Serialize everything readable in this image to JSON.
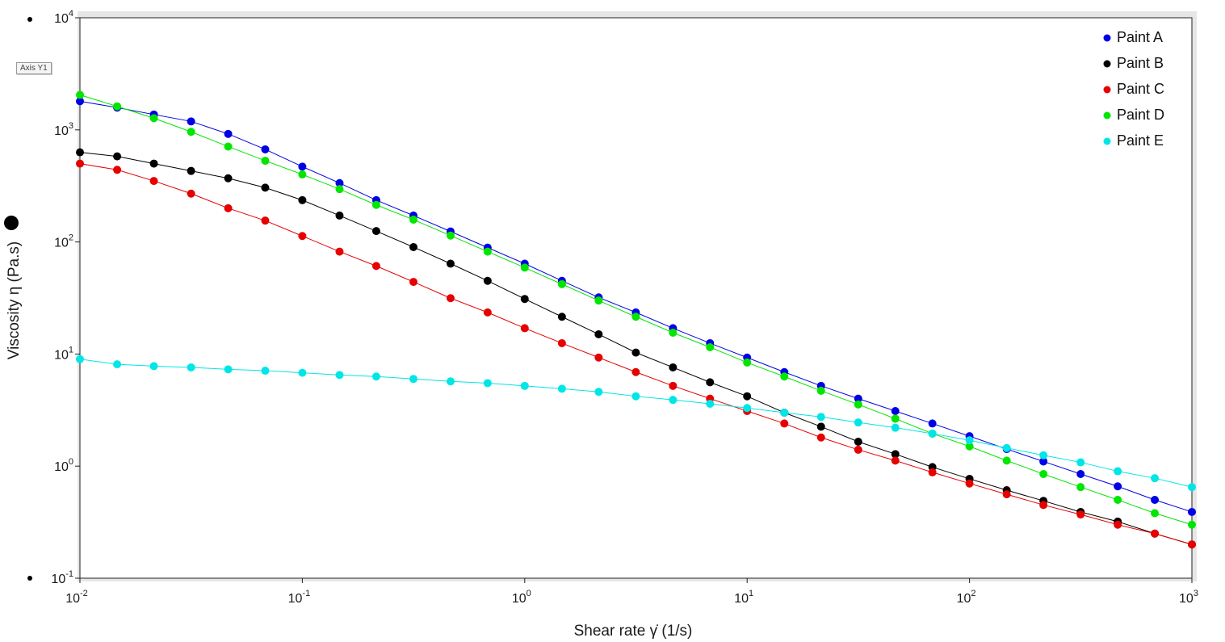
{
  "axis_tag": "Axis Y1",
  "chart_data": {
    "type": "line",
    "title": "",
    "xlabel": "Shear rate  γ̇  (1/s)",
    "ylabel": "Viscosity  η  (Pa.s)",
    "x_scale": "log",
    "y_scale": "log",
    "xlim": [
      0.01,
      1000
    ],
    "ylim": [
      0.1,
      10000
    ],
    "x_ticks": [
      {
        "base": "10",
        "exp": "-2",
        "value": 0.01
      },
      {
        "base": "10",
        "exp": "-1",
        "value": 0.1
      },
      {
        "base": "10",
        "exp": "0",
        "value": 1
      },
      {
        "base": "10",
        "exp": "1",
        "value": 10
      },
      {
        "base": "10",
        "exp": "2",
        "value": 100
      },
      {
        "base": "10",
        "exp": "3",
        "value": 1000
      }
    ],
    "y_ticks": [
      {
        "base": "10",
        "exp": "-1",
        "value": 0.1
      },
      {
        "base": "10",
        "exp": "0",
        "value": 1
      },
      {
        "base": "10",
        "exp": "1",
        "value": 10
      },
      {
        "base": "10",
        "exp": "2",
        "value": 100
      },
      {
        "base": "10",
        "exp": "3",
        "value": 1000
      },
      {
        "base": "10",
        "exp": "4",
        "value": 10000
      }
    ],
    "grid": false,
    "legend_position": "top-right",
    "x": [
      0.01,
      0.0147,
      0.0215,
      0.0316,
      0.0464,
      0.0681,
      0.1,
      0.147,
      0.215,
      0.316,
      0.464,
      0.681,
      1,
      1.47,
      2.15,
      3.16,
      4.64,
      6.81,
      10,
      14.7,
      21.5,
      31.6,
      46.4,
      68.1,
      100,
      147,
      215,
      316,
      464,
      681,
      1000
    ],
    "series": [
      {
        "name": "Paint A",
        "color": "#0000e6",
        "values": [
          1800,
          1580,
          1370,
          1190,
          920,
          670,
          470,
          335,
          236,
          172,
          124,
          89,
          64,
          45,
          32,
          23.5,
          17,
          12.5,
          9.3,
          6.9,
          5.2,
          4.0,
          3.1,
          2.4,
          1.85,
          1.42,
          1.1,
          0.85,
          0.66,
          0.5,
          0.39
        ]
      },
      {
        "name": "Paint B",
        "color": "#000000",
        "values": [
          630,
          580,
          500,
          430,
          370,
          305,
          236,
          172,
          125,
          90,
          64,
          45,
          31,
          21.5,
          15,
          10.3,
          7.6,
          5.6,
          4.2,
          3.0,
          2.25,
          1.65,
          1.28,
          0.98,
          0.77,
          0.61,
          0.49,
          0.39,
          0.32,
          0.25,
          0.2
        ]
      },
      {
        "name": "Paint C",
        "color": "#e60000",
        "values": [
          500,
          440,
          350,
          270,
          200,
          155,
          113,
          82,
          61,
          44,
          31.5,
          23.5,
          17,
          12.5,
          9.3,
          6.9,
          5.2,
          4.0,
          3.1,
          2.4,
          1.8,
          1.4,
          1.12,
          0.88,
          0.7,
          0.56,
          0.45,
          0.37,
          0.3,
          0.25,
          0.2
        ]
      },
      {
        "name": "Paint D",
        "color": "#00e600",
        "values": [
          2050,
          1620,
          1270,
          960,
          710,
          530,
          400,
          296,
          214,
          158,
          114,
          82,
          59,
          42,
          30,
          21.5,
          15.5,
          11.5,
          8.4,
          6.3,
          4.7,
          3.55,
          2.65,
          1.95,
          1.5,
          1.12,
          0.85,
          0.65,
          0.5,
          0.38,
          0.3
        ]
      },
      {
        "name": "Paint E",
        "color": "#00e6e6",
        "values": [
          9.0,
          8.1,
          7.8,
          7.6,
          7.3,
          7.1,
          6.8,
          6.5,
          6.3,
          6.0,
          5.7,
          5.5,
          5.2,
          4.9,
          4.6,
          4.2,
          3.9,
          3.6,
          3.3,
          3.0,
          2.75,
          2.45,
          2.2,
          1.95,
          1.7,
          1.45,
          1.25,
          1.08,
          0.9,
          0.78,
          0.65
        ]
      }
    ]
  }
}
